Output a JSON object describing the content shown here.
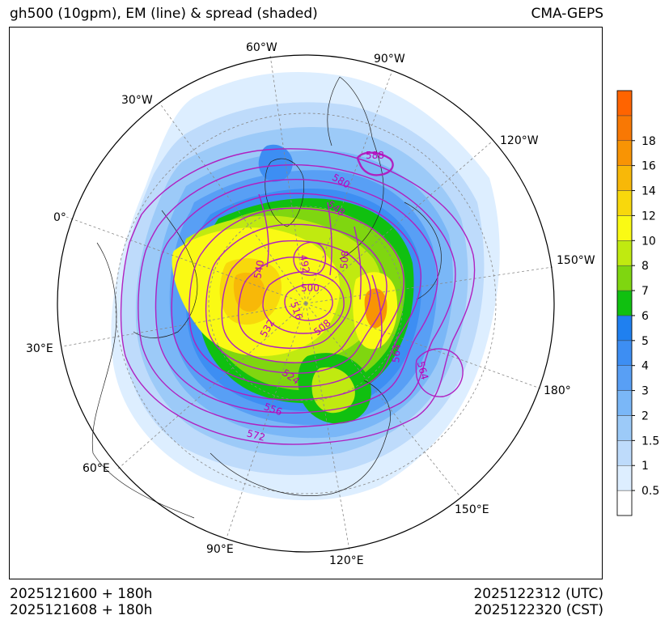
{
  "header": {
    "title": "gh500 (10gpm), EM (line) & spread (shaded)",
    "model": "CMA-GEPS"
  },
  "footer": {
    "init_utc": "2025121600 + 180h",
    "init_cst": "2025121608 + 180h",
    "valid_utc": "2025122312 (UTC)",
    "valid_cst": "2025122320 (CST)"
  },
  "map": {
    "projection": "north-polar-stereographic",
    "meridian_labels": [
      {
        "text": "60°W"
      },
      {
        "text": "90°W"
      },
      {
        "text": "30°W"
      },
      {
        "text": "120°W"
      },
      {
        "text": "0°"
      },
      {
        "text": "150°W"
      },
      {
        "text": "30°E"
      },
      {
        "text": "180°"
      },
      {
        "text": "60°E"
      },
      {
        "text": "150°E"
      },
      {
        "text": "90°E"
      },
      {
        "text": "120°E"
      }
    ],
    "contour_labels": [
      "588",
      "580",
      "548",
      "492",
      "508",
      "540",
      "500",
      "516",
      "532",
      "508",
      "564",
      "564",
      "524",
      "556",
      "572"
    ]
  },
  "colorbar": {
    "ticks": [
      "0.5",
      "1",
      "1.5",
      "2",
      "3",
      "4",
      "5",
      "6",
      "7",
      "8",
      "10",
      "12",
      "14",
      "16",
      "18"
    ],
    "colors": [
      "#ffffff",
      "#ddeeff",
      "#bedbfb",
      "#9ccaf8",
      "#7ab7f7",
      "#589ff5",
      "#3d8ef3",
      "#1f80f0",
      "#10c010",
      "#7fd610",
      "#c0ea10",
      "#fafa14",
      "#f8d80c",
      "#f8b808",
      "#f89404",
      "#f87804",
      "#ff6400"
    ]
  },
  "colors": {
    "contour": "#b020c0",
    "contour_label": "#bb00bb"
  }
}
